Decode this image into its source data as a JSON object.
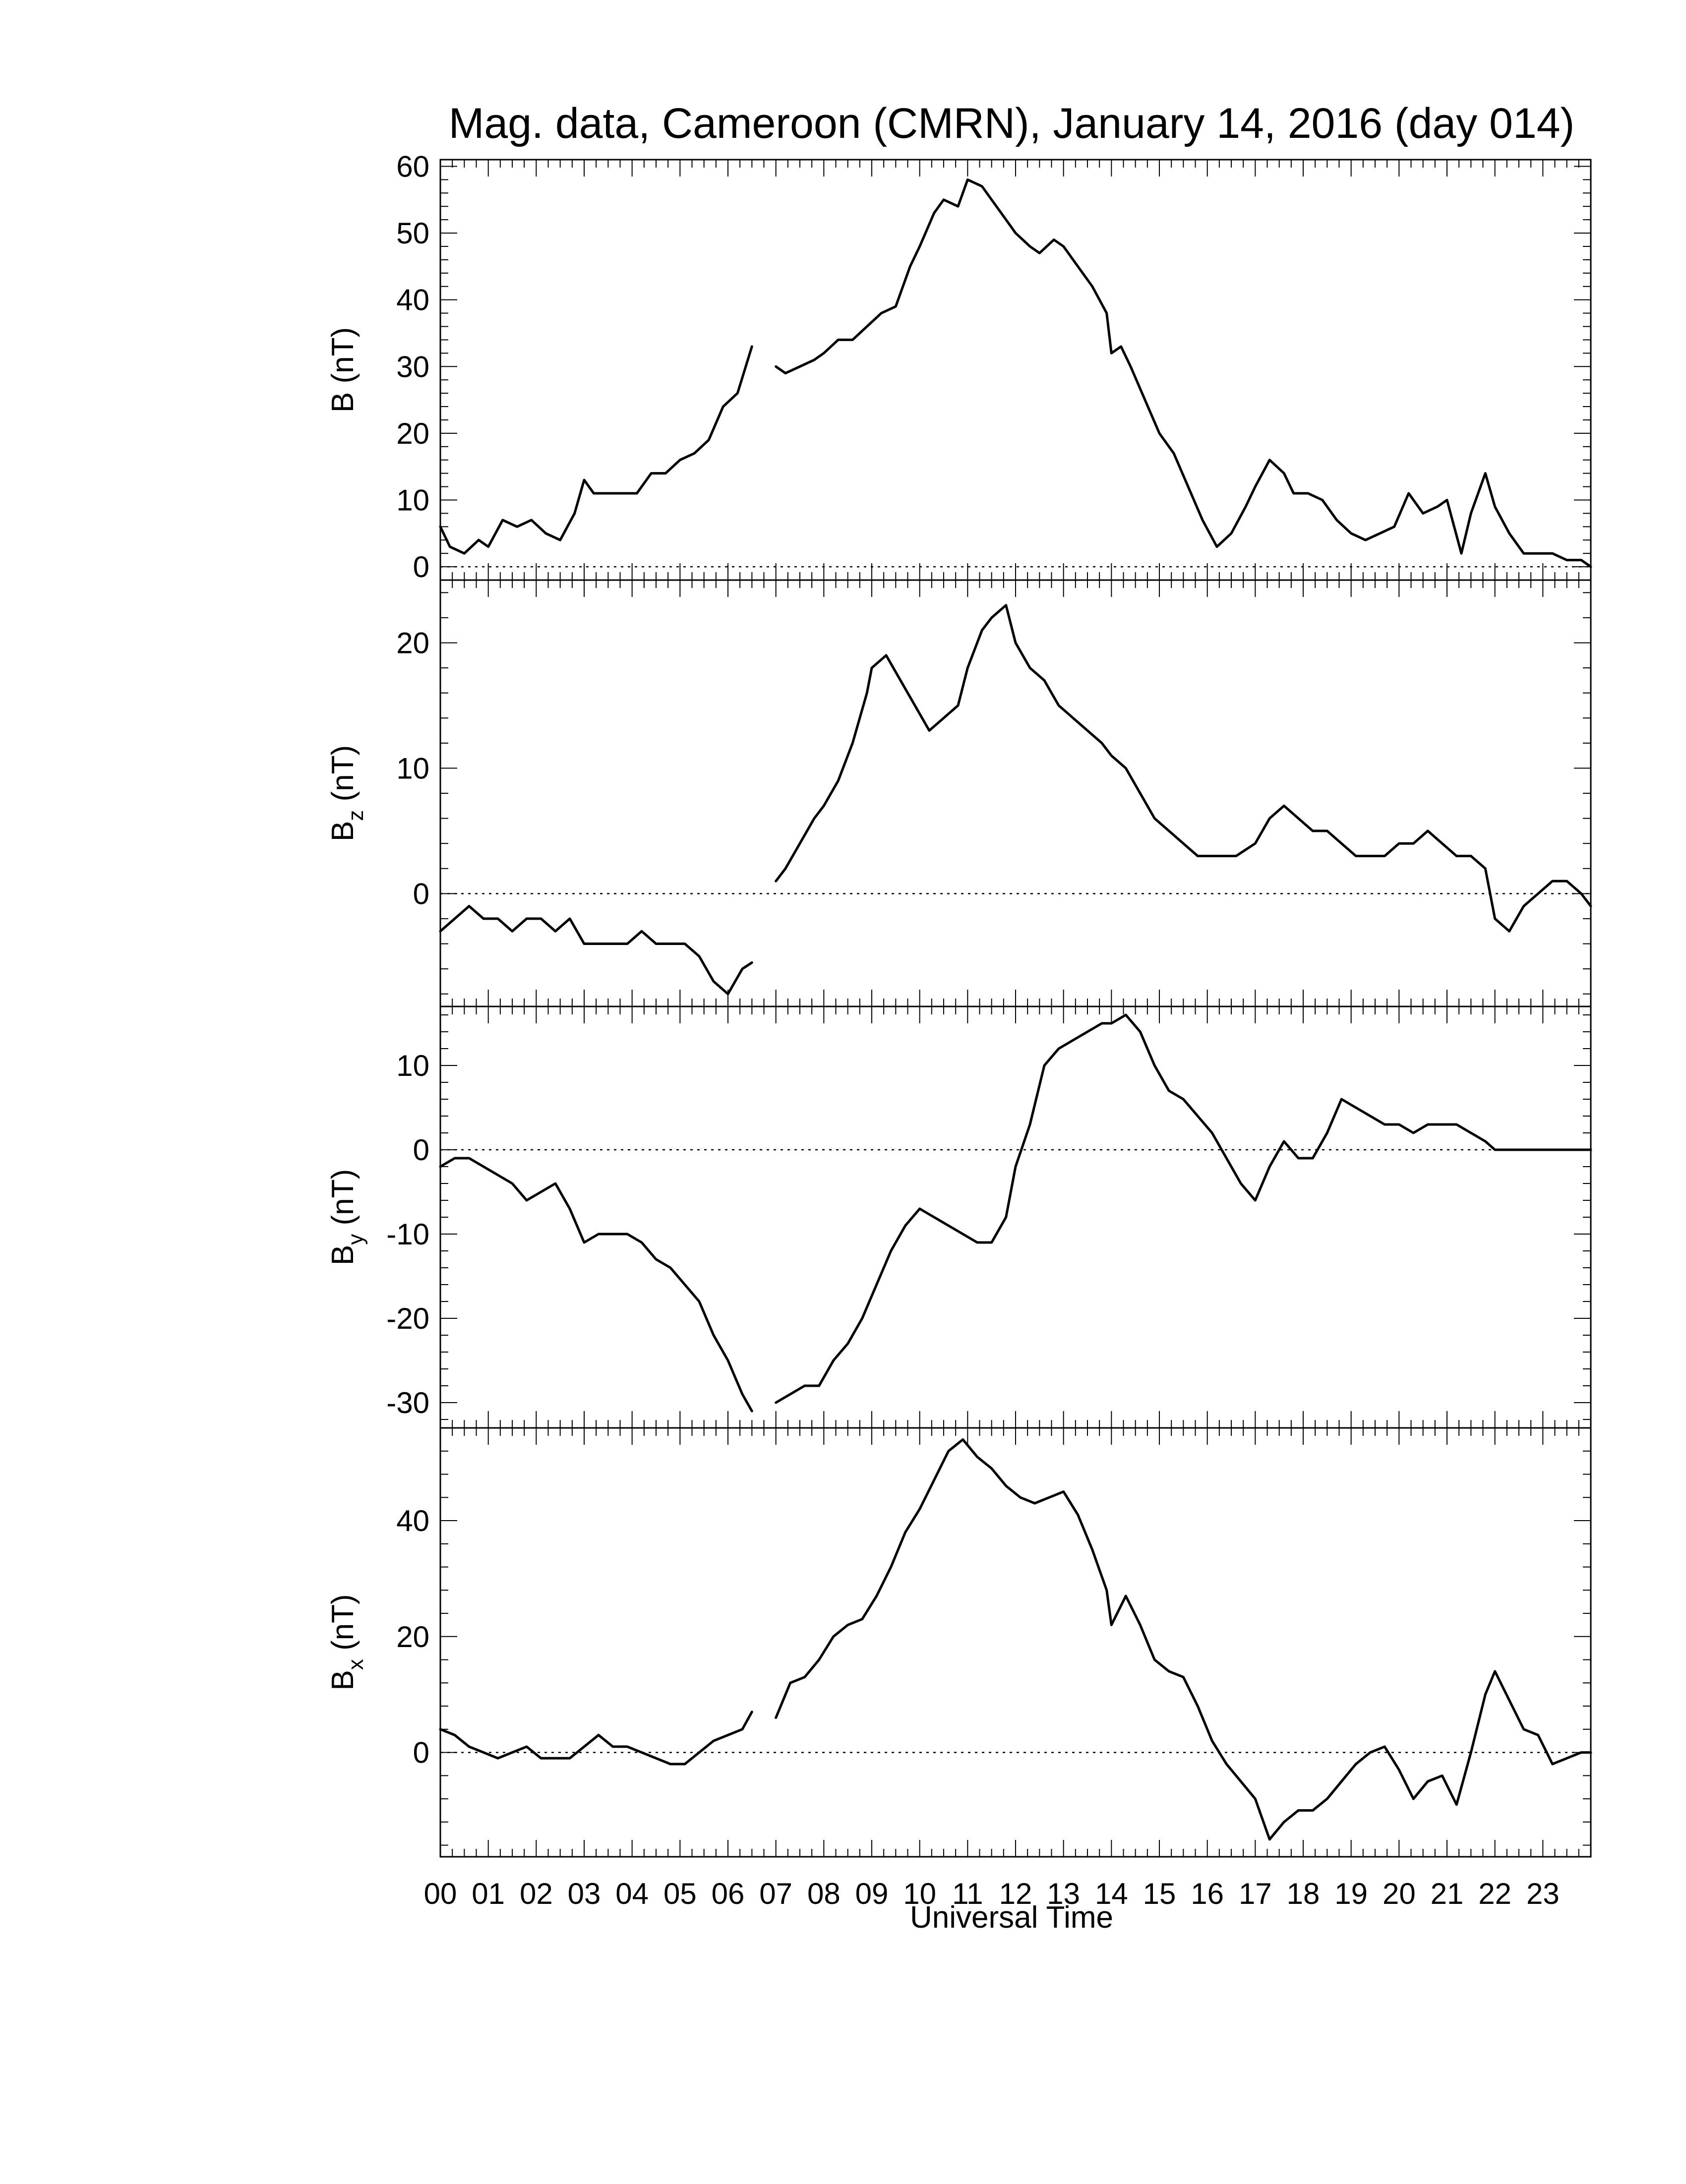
{
  "chart_data": {
    "type": "line",
    "title": "Mag. data, Cameroon (CMRN), January 14, 2016 (day 014)",
    "xlabel": "Universal Time",
    "x_tick_labels": [
      "00",
      "01",
      "02",
      "03",
      "04",
      "05",
      "06",
      "07",
      "08",
      "09",
      "10",
      "11",
      "12",
      "13",
      "14",
      "15",
      "16",
      "17",
      "18",
      "19",
      "20",
      "21",
      "22",
      "23"
    ],
    "xlim": [
      0,
      24
    ],
    "grid": false,
    "zero_line": "dotted",
    "line_color": "#000000",
    "panels": [
      {
        "id": "B",
        "ylabel_main": "B",
        "ylabel_sub": "",
        "ylabel_unit": " (nT)",
        "ylim": [
          -2,
          61
        ],
        "yticks": [
          0,
          10,
          20,
          30,
          40,
          50,
          60
        ],
        "ytick_labels": [
          "0",
          "10",
          "20",
          "30",
          "40",
          "50",
          "60"
        ],
        "segments": [
          {
            "x": [
              0,
              0.2,
              0.5,
              0.8,
              1.0,
              1.3,
              1.6,
              1.9,
              2.2,
              2.5,
              2.8,
              3.0,
              3.2,
              3.5,
              3.8,
              4.1,
              4.4,
              4.7,
              5.0,
              5.3,
              5.6,
              5.9,
              6.2,
              6.5
            ],
            "y": [
              6,
              3,
              2,
              4,
              3,
              7,
              6,
              7,
              5,
              4,
              8,
              13,
              11,
              11,
              11,
              11,
              14,
              14,
              16,
              17,
              19,
              24,
              26,
              33
            ]
          },
          {
            "x": [
              7.0,
              7.2,
              7.5,
              7.8,
              8.0,
              8.3,
              8.6,
              8.9,
              9.2,
              9.5,
              9.8,
              10.0,
              10.3,
              10.5,
              10.8,
              11.0,
              11.3,
              11.5,
              11.8,
              12.0,
              12.3,
              12.5,
              12.8,
              13.0,
              13.3,
              13.6,
              13.9,
              14.0,
              14.2,
              14.4,
              14.7,
              15.0,
              15.3,
              15.6,
              15.9,
              16.2,
              16.5,
              16.8,
              17.0,
              17.3,
              17.6,
              17.8,
              18.1,
              18.4,
              18.7,
              19.0,
              19.3,
              19.6,
              19.9,
              20.2,
              20.5,
              20.8,
              21.0,
              21.3,
              21.5,
              21.8,
              22.0,
              22.3,
              22.6,
              22.9,
              23.2,
              23.5,
              23.8,
              24.0
            ],
            "y": [
              30,
              29,
              30,
              31,
              32,
              34,
              34,
              36,
              38,
              39,
              45,
              48,
              53,
              55,
              54,
              58,
              57,
              55,
              52,
              50,
              48,
              47,
              49,
              48,
              45,
              42,
              38,
              32,
              33,
              30,
              25,
              20,
              17,
              12,
              7,
              3,
              5,
              9,
              12,
              16,
              14,
              11,
              11,
              10,
              7,
              5,
              4,
              5,
              6,
              11,
              8,
              9,
              10,
              2,
              8,
              14,
              9,
              5,
              2,
              2,
              2,
              1,
              1,
              0
            ]
          }
        ]
      },
      {
        "id": "Bz",
        "ylabel_main": "B",
        "ylabel_sub": "z",
        "ylabel_unit": " (nT)",
        "ylim": [
          -9,
          25
        ],
        "yticks": [
          0,
          10,
          20
        ],
        "ytick_labels": [
          "0",
          "10",
          "20"
        ],
        "segments": [
          {
            "x": [
              0,
              0.3,
              0.6,
              0.9,
              1.2,
              1.5,
              1.8,
              2.1,
              2.4,
              2.7,
              3.0,
              3.3,
              3.6,
              3.9,
              4.2,
              4.5,
              4.8,
              5.1,
              5.4,
              5.7,
              6.0,
              6.3,
              6.5
            ],
            "y": [
              -3,
              -2,
              -1,
              -2,
              -2,
              -3,
              -2,
              -2,
              -3,
              -2,
              -4,
              -4,
              -4,
              -4,
              -3,
              -4,
              -4,
              -4,
              -5,
              -7,
              -8,
              -6,
              -5.5
            ]
          },
          {
            "x": [
              7.0,
              7.2,
              7.5,
              7.8,
              8.0,
              8.3,
              8.6,
              8.9,
              9.0,
              9.3,
              9.6,
              9.9,
              10.2,
              10.5,
              10.8,
              11.0,
              11.3,
              11.5,
              11.8,
              12.0,
              12.3,
              12.6,
              12.9,
              13.2,
              13.5,
              13.8,
              14.0,
              14.3,
              14.6,
              14.9,
              15.2,
              15.5,
              15.8,
              16.0,
              16.3,
              16.6,
              17.0,
              17.3,
              17.6,
              17.9,
              18.2,
              18.5,
              18.8,
              19.1,
              19.4,
              19.7,
              20.0,
              20.3,
              20.6,
              20.9,
              21.2,
              21.5,
              21.8,
              22.0,
              22.3,
              22.6,
              22.9,
              23.2,
              23.5,
              23.8,
              24.0
            ],
            "y": [
              1,
              2,
              4,
              6,
              7,
              9,
              12,
              16,
              18,
              19,
              17,
              15,
              13,
              14,
              15,
              18,
              21,
              22,
              23,
              20,
              18,
              17,
              15,
              14,
              13,
              12,
              11,
              10,
              8,
              6,
              5,
              4,
              3,
              3,
              3,
              3,
              4,
              6,
              7,
              6,
              5,
              5,
              4,
              3,
              3,
              3,
              4,
              4,
              5,
              4,
              3,
              3,
              2,
              -2,
              -3,
              -1,
              0,
              1,
              1,
              0,
              -1
            ]
          }
        ]
      },
      {
        "id": "By",
        "ylabel_main": "B",
        "ylabel_sub": "y",
        "ylabel_unit": " (nT)",
        "ylim": [
          -33,
          17
        ],
        "yticks": [
          -30,
          -20,
          -10,
          0,
          10
        ],
        "ytick_labels": [
          "-30",
          "-20",
          "-10",
          "0",
          "10"
        ],
        "segments": [
          {
            "x": [
              0,
              0.3,
              0.6,
              0.9,
              1.2,
              1.5,
              1.8,
              2.1,
              2.4,
              2.7,
              3.0,
              3.3,
              3.6,
              3.9,
              4.2,
              4.5,
              4.8,
              5.1,
              5.4,
              5.7,
              6.0,
              6.3,
              6.5
            ],
            "y": [
              -2,
              -1,
              -1,
              -2,
              -3,
              -4,
              -6,
              -5,
              -4,
              -7,
              -11,
              -10,
              -10,
              -10,
              -11,
              -13,
              -14,
              -16,
              -18,
              -22,
              -25,
              -29,
              -31
            ]
          },
          {
            "x": [
              7.0,
              7.3,
              7.6,
              7.9,
              8.2,
              8.5,
              8.8,
              9.1,
              9.4,
              9.7,
              10.0,
              10.3,
              10.6,
              10.9,
              11.2,
              11.5,
              11.8,
              12.0,
              12.3,
              12.6,
              12.9,
              13.2,
              13.5,
              13.8,
              14.0,
              14.3,
              14.6,
              14.9,
              15.2,
              15.5,
              15.8,
              16.1,
              16.4,
              16.7,
              17.0,
              17.3,
              17.6,
              17.9,
              18.2,
              18.5,
              18.8,
              19.1,
              19.4,
              19.7,
              20.0,
              20.3,
              20.6,
              20.9,
              21.2,
              21.5,
              21.8,
              22.0,
              22.3,
              22.6,
              22.9,
              23.2,
              23.5,
              23.8,
              24.0
            ],
            "y": [
              -30,
              -29,
              -28,
              -28,
              -25,
              -23,
              -20,
              -16,
              -12,
              -9,
              -7,
              -8,
              -9,
              -10,
              -11,
              -11,
              -8,
              -2,
              3,
              10,
              12,
              13,
              14,
              15,
              15,
              16,
              14,
              10,
              7,
              6,
              4,
              2,
              -1,
              -4,
              -6,
              -2,
              1,
              -1,
              -1,
              2,
              6,
              5,
              4,
              3,
              3,
              2,
              3,
              3,
              3,
              2,
              1,
              0,
              0,
              0,
              0,
              0,
              0,
              0,
              0
            ]
          }
        ]
      },
      {
        "id": "Bx",
        "ylabel_main": "B",
        "ylabel_sub": "x",
        "ylabel_unit": " (nT)",
        "ylim": [
          -18,
          56
        ],
        "yticks": [
          0,
          20,
          40
        ],
        "ytick_labels": [
          "0",
          "20",
          "40"
        ],
        "segments": [
          {
            "x": [
              0,
              0.3,
              0.6,
              0.9,
              1.2,
              1.5,
              1.8,
              2.1,
              2.4,
              2.7,
              3.0,
              3.3,
              3.6,
              3.9,
              4.2,
              4.5,
              4.8,
              5.1,
              5.4,
              5.7,
              6.0,
              6.3,
              6.5
            ],
            "y": [
              4,
              3,
              1,
              0,
              -1,
              0,
              1,
              -1,
              -1,
              -1,
              1,
              3,
              1,
              1,
              0,
              -1,
              -2,
              -2,
              0,
              2,
              3,
              4,
              7
            ]
          },
          {
            "x": [
              7.0,
              7.3,
              7.6,
              7.9,
              8.2,
              8.5,
              8.8,
              9.1,
              9.4,
              9.7,
              10.0,
              10.3,
              10.6,
              10.9,
              11.2,
              11.5,
              11.8,
              12.1,
              12.4,
              12.7,
              13.0,
              13.3,
              13.6,
              13.9,
              14.0,
              14.3,
              14.6,
              14.9,
              15.2,
              15.5,
              15.8,
              16.1,
              16.4,
              16.7,
              17.0,
              17.3,
              17.6,
              17.9,
              18.2,
              18.5,
              18.8,
              19.1,
              19.4,
              19.7,
              20.0,
              20.3,
              20.6,
              20.9,
              21.2,
              21.5,
              21.8,
              22.0,
              22.3,
              22.6,
              22.9,
              23.2,
              23.5,
              23.8,
              24.0
            ],
            "y": [
              6,
              12,
              13,
              16,
              20,
              22,
              23,
              27,
              32,
              38,
              42,
              47,
              52,
              54,
              51,
              49,
              46,
              44,
              43,
              44,
              45,
              41,
              35,
              28,
              22,
              27,
              22,
              16,
              14,
              13,
              8,
              2,
              -2,
              -5,
              -8,
              -15,
              -12,
              -10,
              -10,
              -8,
              -5,
              -2,
              0,
              1,
              -3,
              -8,
              -5,
              -4,
              -9,
              0,
              10,
              14,
              9,
              4,
              3,
              -2,
              -1,
              0,
              0
            ]
          }
        ]
      }
    ]
  }
}
